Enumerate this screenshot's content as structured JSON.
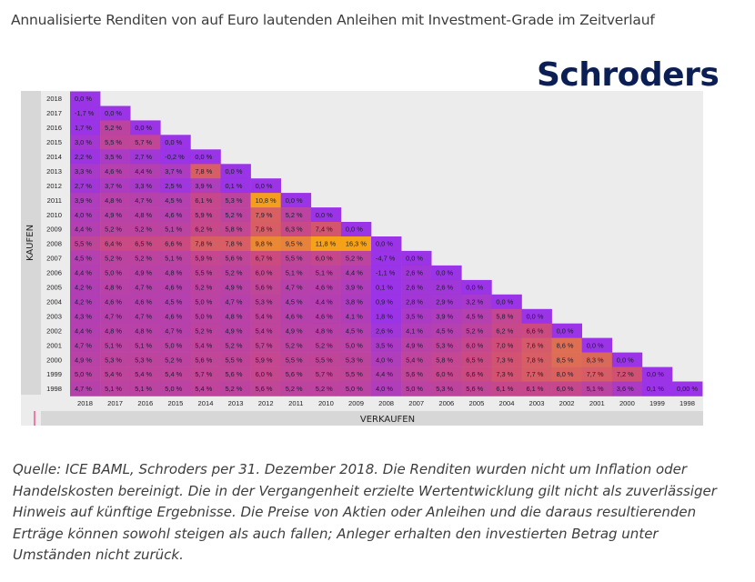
{
  "title": "Annualisierte Renditen von auf Euro lautenden Anleihen mit Investment-Grade im Zeitverlauf",
  "logo_text": "Schroders",
  "caption": "Quelle: ICE BAML, Schroders per 31. Dezember 2018. Die Renditen wurden nicht um Inflation oder Handelskosten bereinigt. Die in der Vergangenheit erzielte Wertentwicklung gilt nicht als zuverlässiger Hinweis auf künftige Ergebnisse. Die Preise von Aktien oder Anleihen und die daraus resultierenden Erträge können sowohl steigen als auch fallen; Anleger erhalten den investierten Betrag unter Umständen nicht zurück.",
  "colors": {
    "title": "#3d3d3d",
    "logo": "#0b1f55",
    "panel": "#ececec",
    "axis_band": "#d7d7d7",
    "accent": "#e8327c",
    "low": "#9b33e6",
    "high": "#f5a218"
  },
  "chart_data": {
    "type": "heatmap",
    "ylabel": "KAUFEN",
    "xlabel": "VERKAUFEN",
    "y_categories": [
      "2018",
      "2017",
      "2016",
      "2015",
      "2014",
      "2013",
      "2012",
      "2011",
      "2010",
      "2009",
      "2008",
      "2007",
      "2006",
      "2005",
      "2004",
      "2003",
      "2002",
      "2001",
      "2000",
      "1999",
      "1998"
    ],
    "x_categories": [
      "2018",
      "2017",
      "2016",
      "2015",
      "2014",
      "2013",
      "2012",
      "2011",
      "2010",
      "2009",
      "2008",
      "2007",
      "2006",
      "2005",
      "2004",
      "2003",
      "2002",
      "2001",
      "2000",
      "1999",
      "1998"
    ],
    "value_unit": "%",
    "rows": [
      [
        "0,0 %"
      ],
      [
        "-1,7 %",
        "0,0 %"
      ],
      [
        "1,7 %",
        "5,2 %",
        "0,0 %"
      ],
      [
        "3,0 %",
        "5,5 %",
        "5,7 %",
        "0,0 %"
      ],
      [
        "2,2 %",
        "3,5 %",
        "2,7 %",
        "-0,2 %",
        "0,0 %"
      ],
      [
        "3,3 %",
        "4,6 %",
        "4,4 %",
        "3,7 %",
        "7,8 %",
        "0,0 %"
      ],
      [
        "2,7 %",
        "3,7 %",
        "3,3 %",
        "2,5 %",
        "3,9 %",
        "0,1 %",
        "0,0 %"
      ],
      [
        "3,9 %",
        "4,8 %",
        "4,7 %",
        "4,5 %",
        "6,1 %",
        "5,3 %",
        "10,8 %",
        "0,0 %"
      ],
      [
        "4,0 %",
        "4,9 %",
        "4,8 %",
        "4,6 %",
        "5,9 %",
        "5,2 %",
        "7,9 %",
        "5,2 %",
        "0,0 %"
      ],
      [
        "4,4 %",
        "5,2 %",
        "5,2 %",
        "5,1 %",
        "6,2 %",
        "5,8 %",
        "7,8 %",
        "6,3 %",
        "7,4 %",
        "0,0 %"
      ],
      [
        "5,5 %",
        "6,4 %",
        "6,5 %",
        "6,6 %",
        "7,8 %",
        "7,8 %",
        "9,8 %",
        "9,5 %",
        "11,8 %",
        "16,3 %",
        "0,0 %"
      ],
      [
        "4,5 %",
        "5,2 %",
        "5,2 %",
        "5,1 %",
        "5,9 %",
        "5,6 %",
        "6,7 %",
        "5,5 %",
        "6,0 %",
        "5,2 %",
        "-4,7 %",
        "0,0 %"
      ],
      [
        "4,4 %",
        "5,0 %",
        "4,9 %",
        "4,8 %",
        "5,5 %",
        "5,2 %",
        "6,0 %",
        "5,1 %",
        "5,1 %",
        "4,4 %",
        "-1,1 %",
        "2,6 %",
        "0,0 %"
      ],
      [
        "4,2 %",
        "4,8 %",
        "4,7 %",
        "4,6 %",
        "5,2 %",
        "4,9 %",
        "5,6 %",
        "4,7 %",
        "4,6 %",
        "3,9 %",
        "0,1 %",
        "2,6 %",
        "2,6 %",
        "0,0 %"
      ],
      [
        "4,2 %",
        "4,6 %",
        "4,6 %",
        "4,5 %",
        "5,0 %",
        "4,7 %",
        "5,3 %",
        "4,5 %",
        "4,4 %",
        "3,8 %",
        "0,9 %",
        "2,8 %",
        "2,9 %",
        "3,2 %",
        "0,0 %"
      ],
      [
        "4,3 %",
        "4,7 %",
        "4,7 %",
        "4,6 %",
        "5,0 %",
        "4,8 %",
        "5,4 %",
        "4,6 %",
        "4,6 %",
        "4,1 %",
        "1,8 %",
        "3,5 %",
        "3,9 %",
        "4,5 %",
        "5,8 %",
        "0,0 %"
      ],
      [
        "4,4 %",
        "4,8 %",
        "4,8 %",
        "4,7 %",
        "5,2 %",
        "4,9 %",
        "5,4 %",
        "4,9 %",
        "4,8 %",
        "4,5 %",
        "2,6 %",
        "4,1 %",
        "4,5 %",
        "5,2 %",
        "6,2 %",
        "6,6 %",
        "0,0 %"
      ],
      [
        "4,7 %",
        "5,1 %",
        "5,1 %",
        "5,0 %",
        "5,4 %",
        "5,2 %",
        "5,7 %",
        "5,2 %",
        "5,2 %",
        "5,0 %",
        "3,5 %",
        "4,9 %",
        "5,3 %",
        "6,0 %",
        "7,0 %",
        "7,6 %",
        "8,6 %",
        "0,0 %"
      ],
      [
        "4,9 %",
        "5,3 %",
        "5,3 %",
        "5,2 %",
        "5,6 %",
        "5,5 %",
        "5,9 %",
        "5,5 %",
        "5,5 %",
        "5,3 %",
        "4,0 %",
        "5,4 %",
        "5,8 %",
        "6,5 %",
        "7,3 %",
        "7,8 %",
        "8,5 %",
        "8,3 %",
        "0,0 %"
      ],
      [
        "5,0 %",
        "5,4 %",
        "5,4 %",
        "5,4 %",
        "5,7 %",
        "5,6 %",
        "6,0 %",
        "5,6 %",
        "5,7 %",
        "5,5 %",
        "4,4 %",
        "5,6 %",
        "6,0 %",
        "6,6 %",
        "7,3 %",
        "7,7 %",
        "8,0 %",
        "7,7 %",
        "7,2 %",
        "0,0 %"
      ],
      [
        "4,7 %",
        "5,1 %",
        "5,1 %",
        "5,0 %",
        "5,4 %",
        "5,2 %",
        "5,6 %",
        "5,2 %",
        "5,2 %",
        "5,0 %",
        "4,0 %",
        "5,0 %",
        "5,3 %",
        "5,6 %",
        "6,1 %",
        "6,1 %",
        "6,0 %",
        "5,1 %",
        "3,6 %",
        "0,1 %",
        "0,00 %"
      ]
    ]
  }
}
